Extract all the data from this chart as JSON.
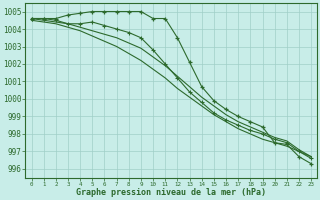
{
  "x": [
    0,
    1,
    2,
    3,
    4,
    5,
    6,
    7,
    8,
    9,
    10,
    11,
    12,
    13,
    14,
    15,
    16,
    17,
    18,
    19,
    20,
    21,
    22,
    23
  ],
  "series_A": [
    1004.6,
    1004.6,
    1004.6,
    1004.8,
    1004.9,
    1005.0,
    1005.0,
    1005.0,
    1005.0,
    1005.0,
    1004.6,
    1004.6,
    1003.5,
    1002.1,
    1000.7,
    999.9,
    999.4,
    999.0,
    998.7,
    998.4,
    997.5,
    997.4,
    996.7,
    996.3
  ],
  "series_B": [
    1004.6,
    1004.6,
    1004.5,
    1004.3,
    1004.3,
    1004.4,
    1004.2,
    1004.0,
    1003.8,
    1003.5,
    1002.8,
    1002.0,
    1001.2,
    1000.4,
    999.8,
    999.2,
    998.8,
    998.5,
    998.2,
    998.0,
    997.7,
    997.5,
    997.0,
    996.6
  ],
  "series_C": [
    1004.6,
    1004.5,
    1004.4,
    1004.3,
    1004.1,
    1003.9,
    1003.7,
    1003.5,
    1003.2,
    1002.9,
    1002.4,
    1001.9,
    1001.3,
    1000.7,
    1000.1,
    999.6,
    999.1,
    998.7,
    998.4,
    998.1,
    997.8,
    997.6,
    997.1,
    996.7
  ],
  "series_D": [
    1004.5,
    1004.4,
    1004.3,
    1004.1,
    1003.9,
    1003.6,
    1003.3,
    1003.0,
    1002.6,
    1002.2,
    1001.7,
    1001.2,
    1000.6,
    1000.1,
    999.6,
    999.1,
    998.7,
    998.3,
    998.0,
    997.7,
    997.5,
    997.3,
    997.0,
    996.7
  ],
  "line_color": "#2d6a2d",
  "bg_color": "#c8ede8",
  "grid_color": "#a0cfc8",
  "xlabel": "Graphe pression niveau de la mer (hPa)",
  "ylim": [
    995.5,
    1005.5
  ],
  "xlim": [
    -0.5,
    23.5
  ],
  "yticks": [
    996,
    997,
    998,
    999,
    1000,
    1001,
    1002,
    1003,
    1004,
    1005
  ]
}
